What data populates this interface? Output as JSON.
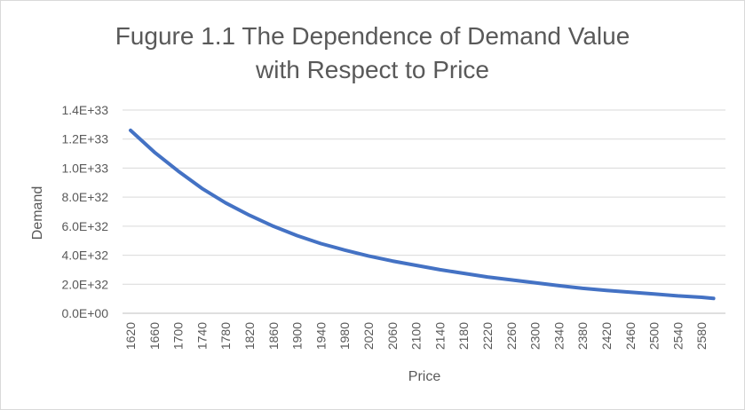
{
  "chart_data": {
    "type": "line",
    "title_line1": "Fugure 1.1 The Dependence of Demand Value",
    "title_line2": "with Respect to Price",
    "xlabel": "Price",
    "ylabel": "Demand",
    "x_tick_labels": [
      "1620",
      "1660",
      "1700",
      "1740",
      "1780",
      "1820",
      "1860",
      "1900",
      "1940",
      "1980",
      "2020",
      "2060",
      "2100",
      "2140",
      "2180",
      "2220",
      "2260",
      "2300",
      "2340",
      "2380",
      "2420",
      "2460",
      "2500",
      "2540",
      "2580"
    ],
    "y_tick_labels": [
      "0.0E+00",
      "2.0E+32",
      "4.0E+32",
      "6.0E+32",
      "8.0E+32",
      "1.0E+33",
      "1.2E+33",
      "1.4E+33"
    ],
    "xlim": [
      1620,
      2600
    ],
    "ylim": [
      0,
      1.4e+33
    ],
    "grid": true,
    "legend": "none",
    "series": [
      {
        "color": "#4472c4",
        "x": [
          1620,
          1660,
          1700,
          1740,
          1780,
          1820,
          1860,
          1900,
          1940,
          1980,
          2020,
          2060,
          2100,
          2140,
          2180,
          2220,
          2260,
          2300,
          2340,
          2380,
          2420,
          2460,
          2500,
          2540,
          2580,
          2600
        ],
        "y": [
          1.26e+33,
          1.11e+33,
          9.8e+32,
          8.6e+32,
          7.6e+32,
          6.75e+32,
          6e+32,
          5.35e+32,
          4.8e+32,
          4.35e+32,
          3.95e+32,
          3.6e+32,
          3.3e+32,
          3e+32,
          2.75e+32,
          2.5e+32,
          2.3e+32,
          2.1e+32,
          1.9e+32,
          1.72e+32,
          1.58e+32,
          1.45e+32,
          1.33e+32,
          1.2e+32,
          1.1e+32,
          1.02e+32
        ]
      }
    ]
  }
}
